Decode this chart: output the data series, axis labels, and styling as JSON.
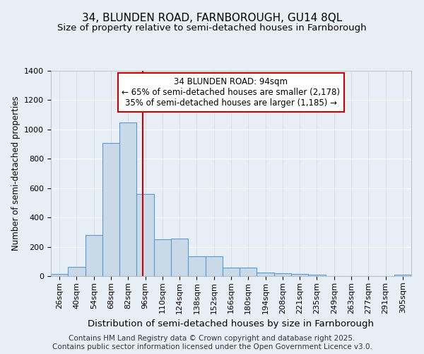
{
  "title1": "34, BLUNDEN ROAD, FARNBOROUGH, GU14 8QL",
  "title2": "Size of property relative to semi-detached houses in Farnborough",
  "xlabel": "Distribution of semi-detached houses by size in Farnborough",
  "ylabel": "Number of semi-detached properties",
  "bar_labels": [
    "26sqm",
    "40sqm",
    "54sqm",
    "68sqm",
    "82sqm",
    "96sqm",
    "110sqm",
    "124sqm",
    "138sqm",
    "152sqm",
    "166sqm",
    "180sqm",
    "194sqm",
    "208sqm",
    "221sqm",
    "235sqm",
    "249sqm",
    "263sqm",
    "277sqm",
    "291sqm",
    "305sqm"
  ],
  "bar_values": [
    15,
    65,
    280,
    910,
    1050,
    560,
    250,
    255,
    135,
    135,
    60,
    60,
    25,
    20,
    15,
    10,
    0,
    0,
    0,
    0,
    10
  ],
  "bar_color": "#c9d9e8",
  "bar_edge_color": "#5b9bd5",
  "background_color": "#e8eef5",
  "grid_color": "#ffffff",
  "vline_color": "#cc0000",
  "annotation_text_line1": "34 BLUNDEN ROAD: 94sqm",
  "annotation_text_line2": "← 65% of semi-detached houses are smaller (2,178)",
  "annotation_text_line3": "35% of semi-detached houses are larger (1,185) →",
  "annotation_box_color": "#ffffff",
  "annotation_box_edge": "#cc0000",
  "ylim": [
    0,
    1400
  ],
  "yticks": [
    0,
    200,
    400,
    600,
    800,
    1000,
    1200,
    1400
  ],
  "footer": "Contains HM Land Registry data © Crown copyright and database right 2025.\nContains public sector information licensed under the Open Government Licence v3.0.",
  "title1_fontsize": 11,
  "title2_fontsize": 9.5,
  "xlabel_fontsize": 9.5,
  "ylabel_fontsize": 8.5,
  "tick_fontsize": 8,
  "annotation_fontsize": 8.5,
  "footer_fontsize": 7.5
}
